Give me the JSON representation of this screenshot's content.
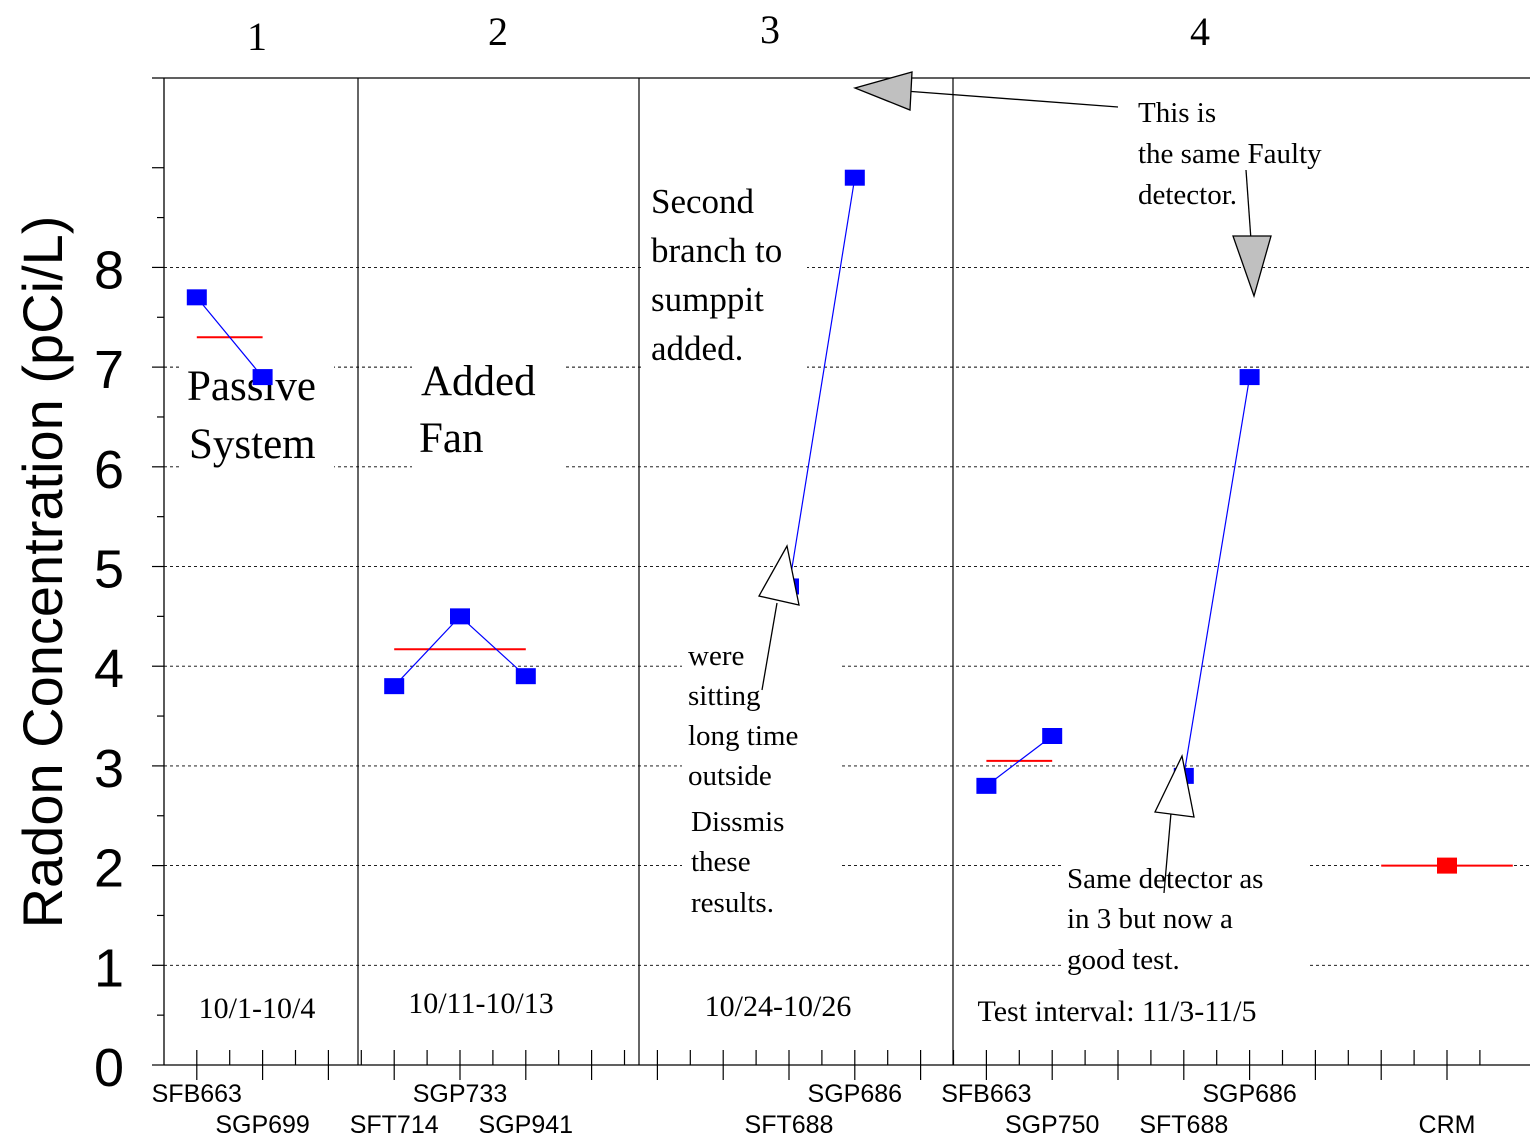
{
  "chart_data": {
    "type": "scatter",
    "ylabel": "Radon Concentration (pCi/L)",
    "ylim": [
      0,
      9.9
    ],
    "yticks": [
      "0",
      "1",
      "2",
      "3",
      "4",
      "5",
      "6",
      "7",
      "8"
    ],
    "grid": true,
    "xlim": [
      0,
      20.5
    ],
    "colors": {
      "detector": "#0000ff",
      "mean": "#ff0000",
      "crm": "#ff0000",
      "connector": "#0000ff"
    },
    "slot_labels": [
      {
        "x": 1,
        "text": "SFB663"
      },
      {
        "x": 2,
        "text": "SGP699"
      },
      {
        "x": 4,
        "text": "SFT714"
      },
      {
        "x": 5,
        "text": "SGP733"
      },
      {
        "x": 6,
        "text": "SGP941"
      },
      {
        "x": 10,
        "text": "SFT688"
      },
      {
        "x": 11,
        "text": "SGP686"
      },
      {
        "x": 13,
        "text": "SFB663"
      },
      {
        "x": 14,
        "text": "SGP750"
      },
      {
        "x": 16,
        "text": "SFT688"
      },
      {
        "x": 17,
        "text": "SGP686"
      },
      {
        "x": 20,
        "text": "CRM"
      }
    ],
    "sections": [
      {
        "number": "1",
        "interval": "10/1-10/4",
        "note": [
          "Passive",
          "System"
        ],
        "points": [
          {
            "x": 1,
            "y": 7.7
          },
          {
            "x": 2,
            "y": 6.9
          }
        ],
        "mean": 7.3
      },
      {
        "number": "2",
        "interval": "10/11-10/13",
        "note": [
          "Added",
          "Fan"
        ],
        "points": [
          {
            "x": 4,
            "y": 3.8
          },
          {
            "x": 5,
            "y": 4.5
          },
          {
            "x": 6,
            "y": 3.9
          }
        ],
        "mean": 4.17
      },
      {
        "number": "3",
        "interval": "10/24-10/26",
        "note": [
          "Second",
          "branch to",
          "sumppit",
          "added."
        ],
        "points": [
          {
            "x": 10,
            "y": 4.8
          },
          {
            "x": 11,
            "y": 8.9
          }
        ]
      },
      {
        "number": "4",
        "interval": "Test interval: 11/3-11/5",
        "points_a": [
          {
            "x": 13,
            "y": 2.8
          },
          {
            "x": 14,
            "y": 3.3
          }
        ],
        "mean_a": 3.05,
        "points_b": [
          {
            "x": 16,
            "y": 2.9
          },
          {
            "x": 17,
            "y": 6.9
          }
        ]
      }
    ],
    "crm": {
      "x": 20,
      "y": 2.0
    },
    "annotations": {
      "sitting": [
        "were",
        "sitting",
        "long time",
        "outside",
        "Dissmis",
        "these",
        "results."
      ],
      "faulty": [
        "This is",
        "the same Faulty",
        "detector."
      ],
      "same_detector": [
        "Same detector as",
        "in 3  but now a",
        "good test."
      ]
    }
  }
}
